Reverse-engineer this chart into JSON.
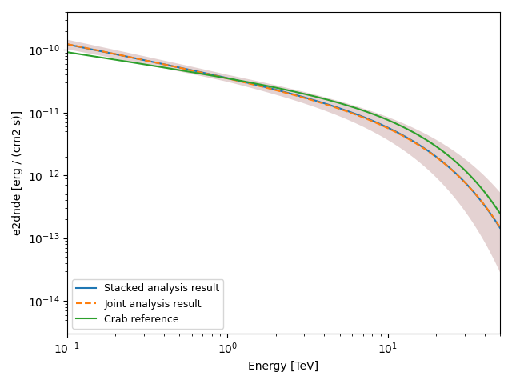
{
  "xlabel": "Energy [TeV]",
  "ylabel": "e2dnde [erg / (cm2 s)]",
  "xlim": [
    0.1,
    50
  ],
  "ylim": [
    3e-15,
    4e-10
  ],
  "energy_min": 0.1,
  "energy_max": 50,
  "n_points": 500,
  "stacked_color": "#1f77b4",
  "joint_color": "#ff7f0e",
  "crab_color": "#2ca02c",
  "band_color": "#bc8f8f",
  "band_alpha": 0.4,
  "legend_labels": [
    "Stacked analysis result",
    "Joint analysis result",
    "Crab reference"
  ],
  "legend_loc": "lower left",
  "stacked_amplitude": 3.8e-11,
  "stacked_index": 2.51,
  "stacked_ecut": 14.0,
  "joint_amplitude": 3.75e-11,
  "joint_index": 2.52,
  "joint_ecut": 14.3,
  "crab_amplitude": 3.76e-11,
  "crab_index": 2.39,
  "crab_ecut": 14.3,
  "band_amp_lo": 3.45e-11,
  "band_amp_hi": 4.25e-11,
  "band_index_lo": 2.48,
  "band_index_hi": 2.54,
  "band_ecut_lo": 10.0,
  "band_ecut_hi": 20.0,
  "figsize": [
    6.4,
    4.8
  ],
  "dpi": 100
}
